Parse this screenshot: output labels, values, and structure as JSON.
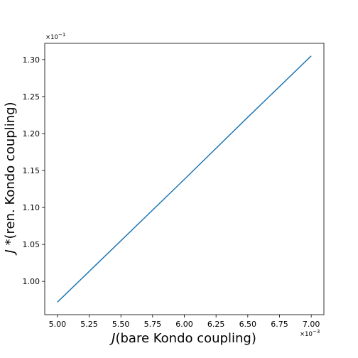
{
  "chart_data": {
    "type": "line",
    "title": "",
    "xlabel": {
      "italic": "J",
      "rest": "(bare Kondo coupling)"
    },
    "ylabel": {
      "italic": "J",
      "rest": " *(ren. Kondo coupling)"
    },
    "x_offset": {
      "base": "×10",
      "exp": "−3"
    },
    "y_offset": {
      "base": "×10",
      "exp": "−1"
    },
    "xlim": [
      4.9,
      7.1
    ],
    "ylim": [
      0.955,
      1.322
    ],
    "xticks": [
      5.0,
      5.25,
      5.5,
      5.75,
      6.0,
      6.25,
      6.5,
      6.75,
      7.0
    ],
    "xtick_labels": [
      "5.00",
      "5.25",
      "5.50",
      "5.75",
      "6.00",
      "6.25",
      "6.50",
      "6.75",
      "7.00"
    ],
    "yticks": [
      1.0,
      1.05,
      1.1,
      1.15,
      1.2,
      1.25,
      1.3
    ],
    "ytick_labels": [
      "1.00",
      "1.05",
      "1.10",
      "1.15",
      "1.20",
      "1.25",
      "1.30"
    ],
    "grid": false,
    "series": [
      {
        "color": "#1f77b4",
        "x": [
          5.0,
          5.5,
          6.0,
          6.5,
          7.0
        ],
        "y": [
          0.972,
          1.055,
          1.138,
          1.222,
          1.305
        ]
      }
    ]
  }
}
